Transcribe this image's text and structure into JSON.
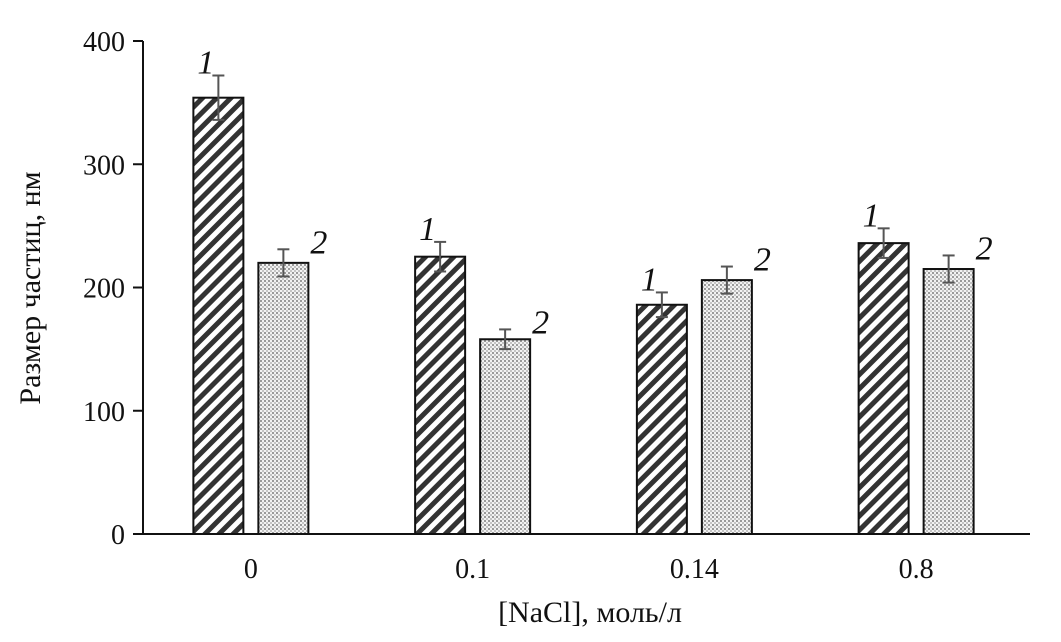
{
  "chart_data": {
    "type": "bar",
    "categories": [
      "0",
      "0.1",
      "0.14",
      "0.8"
    ],
    "series": [
      {
        "name": "1",
        "values": [
          354,
          225,
          186,
          236
        ],
        "errors": [
          18,
          12,
          10,
          12
        ],
        "pattern": "diagonal-hatch"
      },
      {
        "name": "2",
        "values": [
          220,
          158,
          206,
          215
        ],
        "errors": [
          11,
          8,
          11,
          11
        ],
        "pattern": "dotted-fill"
      }
    ],
    "xlabel": "[NaCl], моль/л",
    "ylabel": "Размер частиц, нм",
    "ylim": [
      0,
      400
    ],
    "yticks": [
      "0",
      "100",
      "200",
      "300",
      "400"
    ],
    "grid": false,
    "bar_labels_shown": true
  }
}
